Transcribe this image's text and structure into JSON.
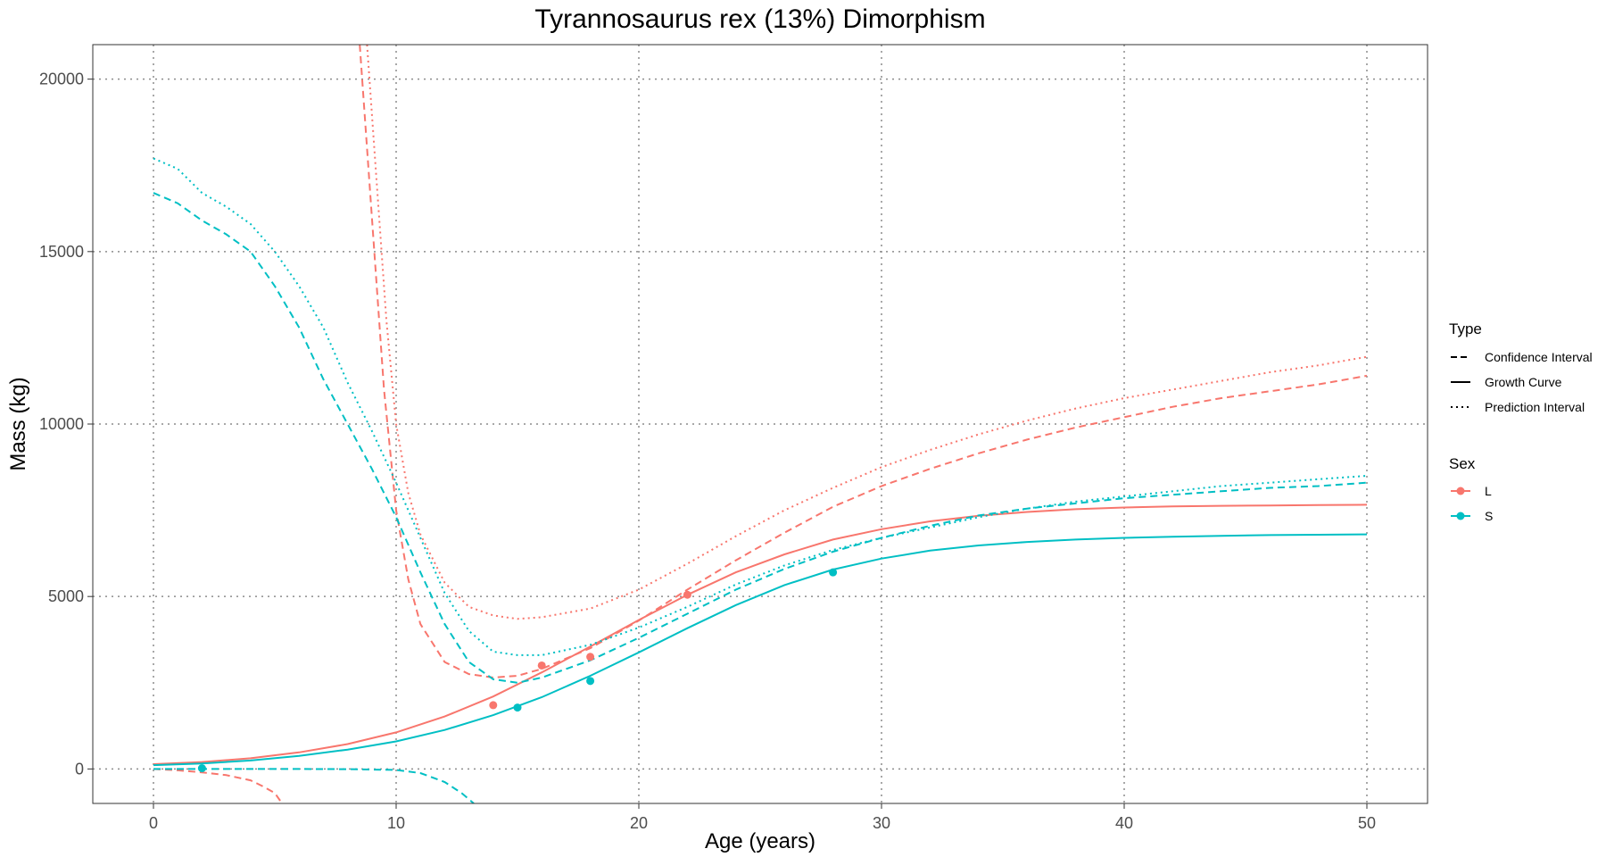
{
  "chart_data": {
    "type": "line",
    "title": "Tyrannosaurus rex (13%) Dimorphism",
    "xlabel": "Age (years)",
    "ylabel": "Mass (kg)",
    "xlim": [
      -2.5,
      52.5
    ],
    "ylim": [
      -1000,
      21000
    ],
    "x_ticks": [
      0,
      10,
      20,
      30,
      40,
      50
    ],
    "y_ticks": [
      0,
      5000,
      10000,
      15000,
      20000
    ],
    "grid": true,
    "legend_position": "right",
    "legend": {
      "type": {
        "title": "Type",
        "items": [
          {
            "label": "Confidence Interval",
            "style": "dashed"
          },
          {
            "label": "Growth Curve",
            "style": "solid"
          },
          {
            "label": "Prediction Interval",
            "style": "dotted"
          }
        ]
      },
      "sex": {
        "title": "Sex",
        "items": [
          {
            "label": "L",
            "color": "#F8766D"
          },
          {
            "label": "S",
            "color": "#00BFC4"
          }
        ]
      }
    },
    "series": [
      {
        "sex": "L",
        "type": "Growth Curve",
        "color": "#F8766D",
        "points": [
          [
            0,
            140
          ],
          [
            2,
            200
          ],
          [
            4,
            310
          ],
          [
            6,
            480
          ],
          [
            8,
            720
          ],
          [
            10,
            1060
          ],
          [
            12,
            1520
          ],
          [
            14,
            2100
          ],
          [
            16,
            2800
          ],
          [
            18,
            3550
          ],
          [
            20,
            4320
          ],
          [
            22,
            5050
          ],
          [
            24,
            5700
          ],
          [
            26,
            6220
          ],
          [
            28,
            6650
          ],
          [
            30,
            6950
          ],
          [
            32,
            7180
          ],
          [
            34,
            7340
          ],
          [
            36,
            7450
          ],
          [
            38,
            7530
          ],
          [
            40,
            7580
          ],
          [
            42,
            7610
          ],
          [
            44,
            7630
          ],
          [
            46,
            7640
          ],
          [
            48,
            7650
          ],
          [
            50,
            7660
          ]
        ]
      },
      {
        "sex": "S",
        "type": "Growth Curve",
        "color": "#00BFC4",
        "points": [
          [
            0,
            110
          ],
          [
            2,
            160
          ],
          [
            4,
            245
          ],
          [
            6,
            380
          ],
          [
            8,
            560
          ],
          [
            10,
            800
          ],
          [
            12,
            1130
          ],
          [
            14,
            1560
          ],
          [
            16,
            2080
          ],
          [
            18,
            2700
          ],
          [
            20,
            3380
          ],
          [
            22,
            4080
          ],
          [
            24,
            4750
          ],
          [
            26,
            5330
          ],
          [
            28,
            5780
          ],
          [
            30,
            6100
          ],
          [
            32,
            6330
          ],
          [
            34,
            6480
          ],
          [
            36,
            6580
          ],
          [
            38,
            6650
          ],
          [
            40,
            6700
          ],
          [
            42,
            6730
          ],
          [
            44,
            6760
          ],
          [
            46,
            6780
          ],
          [
            48,
            6790
          ],
          [
            50,
            6800
          ]
        ]
      },
      {
        "sex": "L",
        "type": "Confidence Interval",
        "color": "#F8766D",
        "bound": "upper",
        "points": [
          [
            8.5,
            21000
          ],
          [
            9,
            16000
          ],
          [
            9.5,
            11000
          ],
          [
            10,
            7500
          ],
          [
            10.5,
            5500
          ],
          [
            11,
            4200
          ],
          [
            12,
            3100
          ],
          [
            13,
            2750
          ],
          [
            14,
            2650
          ],
          [
            15,
            2700
          ],
          [
            16,
            2900
          ],
          [
            18,
            3500
          ],
          [
            20,
            4300
          ],
          [
            22,
            5200
          ],
          [
            24,
            6050
          ],
          [
            26,
            6850
          ],
          [
            28,
            7600
          ],
          [
            30,
            8200
          ],
          [
            32,
            8700
          ],
          [
            34,
            9150
          ],
          [
            36,
            9550
          ],
          [
            38,
            9900
          ],
          [
            40,
            10200
          ],
          [
            42,
            10500
          ],
          [
            44,
            10750
          ],
          [
            46,
            10950
          ],
          [
            48,
            11150
          ],
          [
            50,
            11400
          ]
        ]
      },
      {
        "sex": "L",
        "type": "Confidence Interval",
        "color": "#F8766D",
        "bound": "lower",
        "points": [
          [
            0,
            0
          ],
          [
            1,
            -40
          ],
          [
            2,
            -100
          ],
          [
            3,
            -180
          ],
          [
            4,
            -330
          ],
          [
            4.5,
            -500
          ],
          [
            5,
            -700
          ],
          [
            5.3,
            -1000
          ]
        ]
      },
      {
        "sex": "L",
        "type": "Prediction Interval",
        "color": "#F8766D",
        "bound": "upper",
        "points": [
          [
            8.8,
            21000
          ],
          [
            9.2,
            17000
          ],
          [
            9.6,
            13000
          ],
          [
            10,
            10000
          ],
          [
            10.5,
            8000
          ],
          [
            11,
            6800
          ],
          [
            12,
            5400
          ],
          [
            13,
            4700
          ],
          [
            14,
            4450
          ],
          [
            15,
            4350
          ],
          [
            16,
            4400
          ],
          [
            18,
            4650
          ],
          [
            20,
            5200
          ],
          [
            22,
            5950
          ],
          [
            24,
            6750
          ],
          [
            26,
            7500
          ],
          [
            28,
            8150
          ],
          [
            30,
            8750
          ],
          [
            32,
            9250
          ],
          [
            34,
            9700
          ],
          [
            36,
            10100
          ],
          [
            38,
            10450
          ],
          [
            40,
            10750
          ],
          [
            42,
            11000
          ],
          [
            44,
            11250
          ],
          [
            46,
            11500
          ],
          [
            48,
            11700
          ],
          [
            50,
            11950
          ]
        ]
      },
      {
        "sex": "S",
        "type": "Confidence Interval",
        "color": "#00BFC4",
        "bound": "upper",
        "points": [
          [
            0,
            16700
          ],
          [
            1,
            16400
          ],
          [
            2,
            15900
          ],
          [
            3,
            15500
          ],
          [
            4,
            15000
          ],
          [
            5,
            14000
          ],
          [
            6,
            12800
          ],
          [
            7,
            11300
          ],
          [
            8,
            10000
          ],
          [
            9,
            8700
          ],
          [
            10,
            7300
          ],
          [
            11,
            5700
          ],
          [
            12,
            4200
          ],
          [
            13,
            3100
          ],
          [
            14,
            2600
          ],
          [
            15,
            2500
          ],
          [
            16,
            2650
          ],
          [
            18,
            3150
          ],
          [
            20,
            3800
          ],
          [
            22,
            4500
          ],
          [
            24,
            5200
          ],
          [
            26,
            5800
          ],
          [
            28,
            6300
          ],
          [
            30,
            6700
          ],
          [
            32,
            7050
          ],
          [
            34,
            7350
          ],
          [
            36,
            7550
          ],
          [
            38,
            7700
          ],
          [
            40,
            7850
          ],
          [
            42,
            7950
          ],
          [
            44,
            8050
          ],
          [
            46,
            8150
          ],
          [
            48,
            8200
          ],
          [
            50,
            8300
          ]
        ]
      },
      {
        "sex": "S",
        "type": "Confidence Interval",
        "color": "#00BFC4",
        "bound": "lower",
        "points": [
          [
            0,
            0
          ],
          [
            2,
            0
          ],
          [
            4,
            0
          ],
          [
            6,
            0
          ],
          [
            8,
            -5
          ],
          [
            10,
            -30
          ],
          [
            11,
            -120
          ],
          [
            12,
            -380
          ],
          [
            12.7,
            -700
          ],
          [
            13.2,
            -1000
          ]
        ]
      },
      {
        "sex": "S",
        "type": "Prediction Interval",
        "color": "#00BFC4",
        "bound": "upper",
        "points": [
          [
            0,
            17700
          ],
          [
            1,
            17400
          ],
          [
            2,
            16700
          ],
          [
            3,
            16300
          ],
          [
            4,
            15800
          ],
          [
            5,
            15000
          ],
          [
            6,
            14000
          ],
          [
            7,
            12800
          ],
          [
            8,
            11200
          ],
          [
            9,
            9800
          ],
          [
            10,
            8300
          ],
          [
            11,
            6700
          ],
          [
            12,
            5100
          ],
          [
            13,
            4000
          ],
          [
            14,
            3400
          ],
          [
            15,
            3300
          ],
          [
            16,
            3300
          ],
          [
            18,
            3600
          ],
          [
            20,
            4100
          ],
          [
            22,
            4700
          ],
          [
            24,
            5350
          ],
          [
            26,
            5900
          ],
          [
            28,
            6350
          ],
          [
            30,
            6700
          ],
          [
            32,
            7000
          ],
          [
            34,
            7300
          ],
          [
            36,
            7550
          ],
          [
            38,
            7750
          ],
          [
            40,
            7900
          ],
          [
            42,
            8050
          ],
          [
            44,
            8200
          ],
          [
            46,
            8300
          ],
          [
            48,
            8400
          ],
          [
            50,
            8500
          ]
        ]
      }
    ],
    "observations": [
      {
        "sex": "L",
        "color": "#F8766D",
        "points": [
          [
            14,
            1850
          ],
          [
            16,
            3000
          ],
          [
            18,
            3250
          ],
          [
            22,
            5050
          ]
        ]
      },
      {
        "sex": "S",
        "color": "#00BFC4",
        "points": [
          [
            2,
            20
          ],
          [
            15,
            1780
          ],
          [
            18,
            2550
          ],
          [
            28,
            5700
          ]
        ]
      }
    ]
  }
}
